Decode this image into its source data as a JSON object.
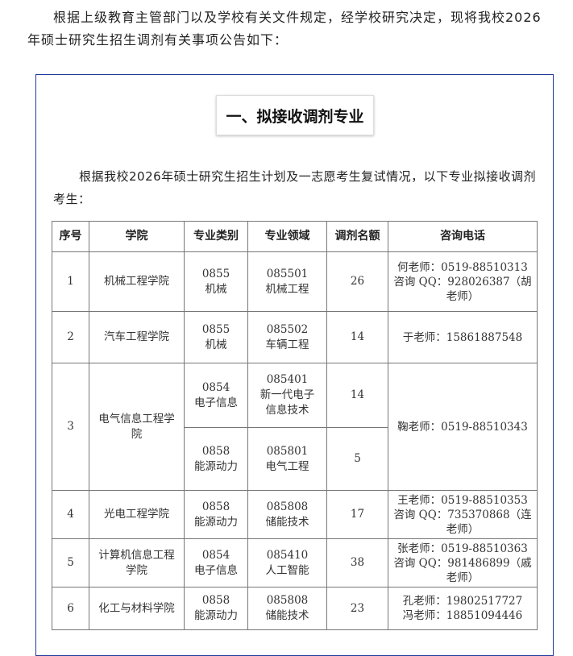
{
  "intro": "根据上级教育主管部门以及学校有关文件规定，经学校研究决定，现将我校2026年硕士研究生招生调剂有关事项公告如下：",
  "section_title": "一、拟接收调剂专业",
  "section_para": "根据我校2026年硕士研究生招生计划及一志愿考生复试情况，以下专业拟接收调剂考生：",
  "table": {
    "headers": [
      "序号",
      "学院",
      "专业类别",
      "专业领域",
      "调剂名额",
      "咨询电话"
    ],
    "rows": [
      {
        "no": "1",
        "college": "机械工程学院",
        "category": [
          "0855",
          "机械"
        ],
        "field": [
          "085501",
          "机械工程"
        ],
        "quota": "26",
        "contact": [
          "何老师：0519-88510313",
          "咨询 QQ：928026387（胡老师）"
        ]
      },
      {
        "no": "2",
        "college": "汽车工程学院",
        "category": [
          "0855",
          "机械"
        ],
        "field": [
          "085502",
          "车辆工程"
        ],
        "quota": "14",
        "contact": [
          "于老师：15861887548"
        ]
      },
      {
        "no": "3",
        "college": "电气信息工程学院",
        "category": [
          "0854",
          "电子信息"
        ],
        "field": [
          "085401",
          "新一代电子信息技术"
        ],
        "quota": "14",
        "contact": [
          "鞠老师：0519-88510343"
        ]
      },
      {
        "category": [
          "0858",
          "能源动力"
        ],
        "field": [
          "085801",
          "电气工程"
        ],
        "quota": "5"
      },
      {
        "no": "4",
        "college": "光电工程学院",
        "category": [
          "0858",
          "能源动力"
        ],
        "field": [
          "085808",
          "储能技术"
        ],
        "quota": "17",
        "contact": [
          "王老师：0519-88510353",
          "咨询 QQ：735370868（连老师）"
        ]
      },
      {
        "no": "5",
        "college": "计算机信息工程学院",
        "category": [
          "0854",
          "电子信息"
        ],
        "field": [
          "085410",
          "人工智能"
        ],
        "quota": "38",
        "contact": [
          "张老师：0519-88510363",
          "咨询 QQ：981486899（戚老师）"
        ]
      },
      {
        "no": "6",
        "college": "化工与材料学院",
        "category": [
          "0858",
          "能源动力"
        ],
        "field": [
          "085808",
          "储能技术"
        ],
        "quota": "23",
        "contact": [
          "孔老师：19802517727",
          "冯老师：18851094446"
        ]
      }
    ]
  },
  "colors": {
    "frame_border": "#1f3a9a",
    "table_border": "#777777"
  }
}
